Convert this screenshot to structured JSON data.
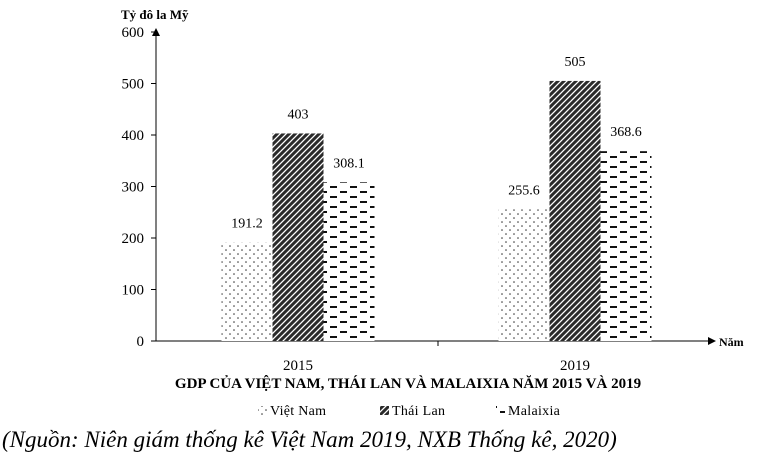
{
  "chart_data": {
    "type": "bar",
    "title": "GDP CỦA VIỆT NAM, THÁI LAN VÀ MALAIXIA NĂM 2015 VÀ 2019",
    "ylabel": "Tỷ đô la Mỹ",
    "xlabel": "Năm",
    "categories": [
      "2015",
      "2019"
    ],
    "ylim": [
      0,
      600
    ],
    "yticks": [
      "0",
      "100",
      "200",
      "300",
      "400",
      "500",
      "600"
    ],
    "series": [
      {
        "name": "Việt Nam",
        "values": [
          191.2,
          255.6
        ],
        "labels": [
          "191.2",
          "255.6"
        ],
        "pattern": "dots"
      },
      {
        "name": "Thái Lan",
        "values": [
          403,
          505
        ],
        "labels": [
          "403",
          "505"
        ],
        "pattern": "hatch"
      },
      {
        "name": "Malaixia",
        "values": [
          308.1,
          368.6
        ],
        "labels": [
          "308.1",
          "368.6"
        ],
        "pattern": "dashes"
      }
    ],
    "legend_position": "bottom",
    "grid": false
  },
  "source": "(Nguồn: Niên giám thống kê Việt Nam 2019, NXB Thống kê, 2020)",
  "colors": {
    "axis": "#000000",
    "bar_dark": "#1a1a1a",
    "bar_light": "#ffffff"
  }
}
